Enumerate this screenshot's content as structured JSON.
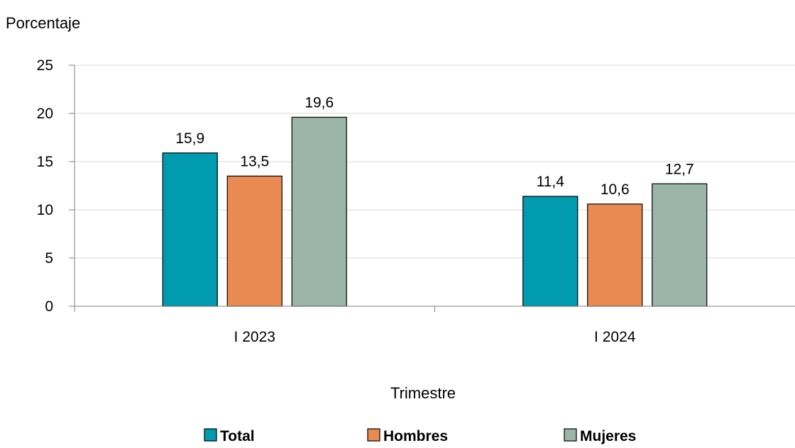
{
  "chart_data": {
    "type": "bar",
    "ylabel": "Porcentaje",
    "xlabel": "Trimestre",
    "categories": [
      "I 2023",
      "I 2024"
    ],
    "ylim": [
      0,
      25
    ],
    "yticks": [
      0,
      5,
      10,
      15,
      20,
      25
    ],
    "grid": true,
    "legend_position": "bottom",
    "series": [
      {
        "name": "Total",
        "values": [
          15.9,
          11.4
        ],
        "labels": [
          "15,9",
          "11,4"
        ],
        "color": "#009BAE"
      },
      {
        "name": "Hombres",
        "values": [
          13.5,
          10.6
        ],
        "labels": [
          "13,5",
          "10,6"
        ],
        "color": "#E98A53"
      },
      {
        "name": "Mujeres",
        "values": [
          19.6,
          12.7
        ],
        "labels": [
          "19,6",
          "12,7"
        ],
        "color": "#9BB5AA"
      }
    ]
  }
}
